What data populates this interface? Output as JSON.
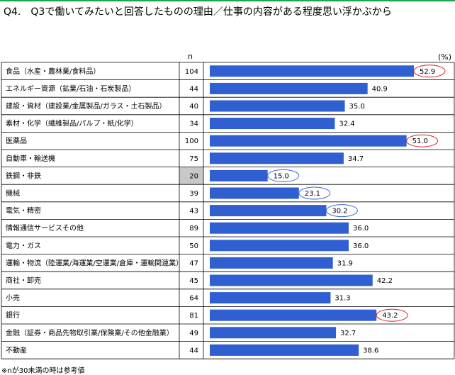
{
  "title": "Q4.　Q3で働いてみたいと回答したものの理由／仕事の内容がある程度思い浮かぶから",
  "n_header": "n",
  "unit": "(%)",
  "note": "※nが30未満の時は参考値",
  "colors": {
    "bar": "#2f5fd0",
    "accent": "#19a84d",
    "highlight_circle": "#d9202a",
    "low_circle": "#3d6ad6",
    "small_n_fill": "#c8c8c8"
  },
  "chart_data": {
    "type": "bar",
    "orientation": "horizontal",
    "categories": [
      "食品（水産・農林業/食料品）",
      "エネルギー資源（鉱業/石油・石炭製品）",
      "建設・資材（建設業/金属製品/ガラス・土石製品）",
      "素材・化学（繊維製品/パルプ・紙/化学）",
      "医薬品",
      "自動車・輸送機",
      "鉄鋼・非鉄",
      "機械",
      "電気・精密",
      "情報通信サービスその他",
      "電力・ガス",
      "運輸・物流（陸運業/海運業/空運業/倉庫・運輸関連業）",
      "商社・卸売",
      "小売",
      "銀行",
      "金融（証券・商品先物取引業/保険業/その他金融業）",
      "不動産"
    ],
    "n": [
      104,
      44,
      40,
      34,
      100,
      75,
      20,
      39,
      43,
      89,
      50,
      47,
      45,
      64,
      81,
      49,
      44
    ],
    "values": [
      52.9,
      40.9,
      35.0,
      32.4,
      51.0,
      34.7,
      15.0,
      23.1,
      30.2,
      36.0,
      36.0,
      31.9,
      42.2,
      31.3,
      43.2,
      32.7,
      38.6
    ],
    "value_labels": [
      "52.9",
      "40.9",
      "35.0",
      "32.4",
      "51.0",
      "34.7",
      "15.0",
      "23.1",
      "30.2",
      "36.0",
      "36.0",
      "31.9",
      "42.2",
      "31.3",
      "43.2",
      "32.7",
      "38.6"
    ],
    "highlight_high": [
      0,
      4,
      14
    ],
    "highlight_low": [
      6,
      7,
      8
    ],
    "small_n": [
      6
    ],
    "xlim": [
      0,
      63
    ]
  }
}
